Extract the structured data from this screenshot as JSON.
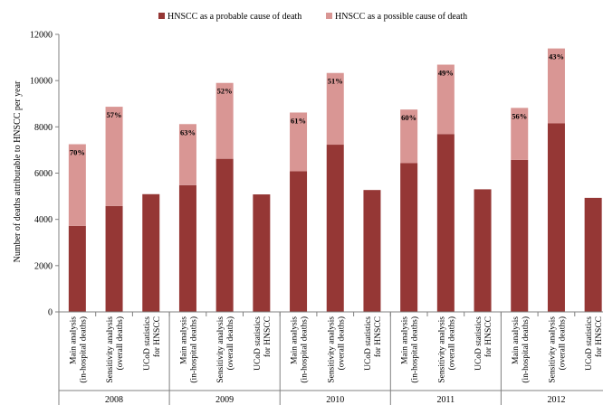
{
  "chart_data": {
    "type": "bar",
    "stacked": true,
    "title": "",
    "xlabel": "",
    "ylabel": "Number of deaths attributable to HNSCC per year",
    "ylim": [
      0,
      12000
    ],
    "yticks": [
      0,
      2000,
      4000,
      6000,
      8000,
      10000,
      12000
    ],
    "legend_position": "top",
    "grid": false,
    "categories": [
      "Main analysis|(in-hospital deaths)",
      "Sensitivity analysis|(overall deaths)",
      "UCoD statistics|for HNSCC",
      "Main analysis|(in-hospital deaths)",
      "Sensitivity analysis|(overall deaths)",
      "UCoD statistics|for HNSCC",
      "Main analysis|(in-hospital deaths)",
      "Sensitivity analysis|(overall deaths)",
      "UCoD statistics|for HNSCC",
      "Main analysis|(in-hospital deaths)",
      "Sensitivity analysis|(overall deaths)",
      "UCoD statistics|for HNSCC",
      "Main analysis|(in-hospital deaths)",
      "Sensitivity analysis|(overall deaths)",
      "UCoD statistics|for HNSCC"
    ],
    "groups": [
      "2008",
      "2009",
      "2010",
      "2011",
      "2012"
    ],
    "series": [
      {
        "name": "HNSCC as a probable cause of death",
        "color": "#953735",
        "values": [
          3720,
          4580,
          5090,
          5480,
          6620,
          5080,
          6080,
          7230,
          5270,
          6430,
          7690,
          5300,
          6570,
          8150,
          4930
        ]
      },
      {
        "name": "HNSCC as a possible cause of death",
        "color": "#d99694",
        "values": [
          3530,
          4290,
          0,
          2640,
          3280,
          0,
          2540,
          3100,
          0,
          2320,
          3000,
          0,
          2250,
          3240,
          0
        ]
      }
    ],
    "annotations": [
      "70%",
      "57%",
      "",
      "63%",
      "52%",
      "",
      "61%",
      "51%",
      "",
      "60%",
      "49%",
      "",
      "56%",
      "43%",
      ""
    ]
  }
}
